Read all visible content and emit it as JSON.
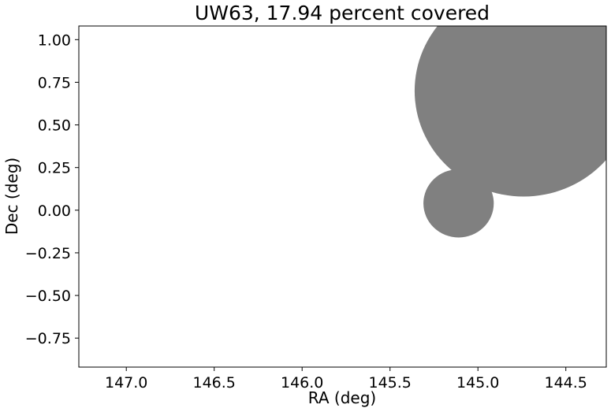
{
  "chart_data": {
    "type": "scatter",
    "title": "UW63, 17.94 percent covered",
    "xlabel": "RA (deg)",
    "ylabel": "Dec (deg)",
    "xlim": [
      147.27,
      144.27
    ],
    "ylim": [
      -0.92,
      1.08
    ],
    "x_inverted": true,
    "xticks": [
      147.0,
      146.5,
      146.0,
      145.5,
      145.0,
      144.5
    ],
    "xtick_labels": [
      "147.0",
      "146.5",
      "146.0",
      "145.5",
      "145.0",
      "144.5"
    ],
    "yticks": [
      1.0,
      0.75,
      0.5,
      0.25,
      0.0,
      -0.25,
      -0.5,
      -0.75
    ],
    "ytick_labels": [
      "1.00",
      "0.75",
      "0.50",
      "0.25",
      "0.00",
      "−0.25",
      "−0.50",
      "−0.75"
    ],
    "grid": false,
    "fill_color": "#808080",
    "circles": [
      {
        "ra": 144.74,
        "dec": 0.7,
        "radius_deg": 0.62
      },
      {
        "ra": 145.11,
        "dec": 0.04,
        "radius_deg": 0.2
      }
    ]
  }
}
